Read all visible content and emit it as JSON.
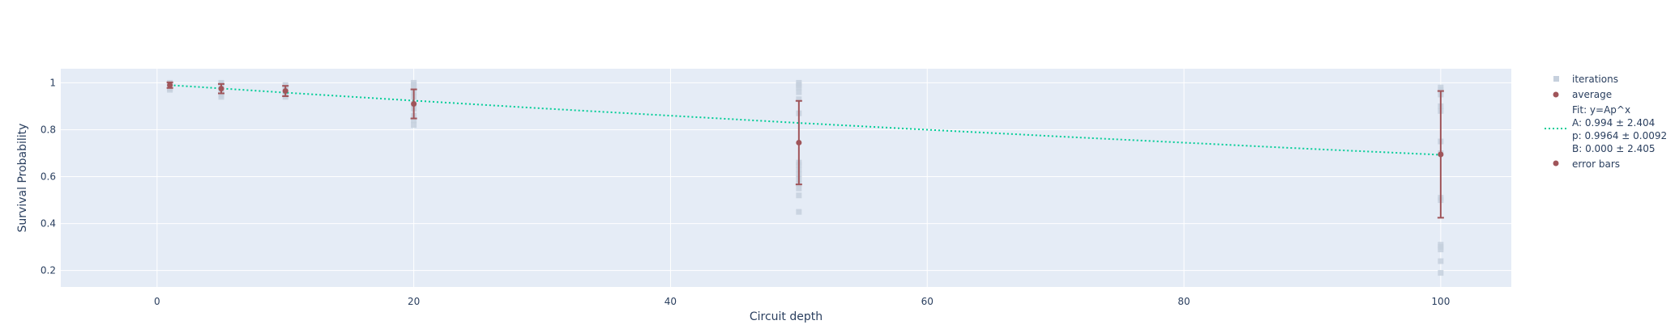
{
  "chart_data": {
    "type": "scatter",
    "xlabel": "Circuit depth",
    "ylabel": "Survival Probability",
    "xlim": [
      -7.5,
      105.5
    ],
    "ylim": [
      0.13,
      1.06
    ],
    "x_ticks": [
      0,
      20,
      40,
      60,
      80,
      100
    ],
    "y_ticks": [
      0.2,
      0.4,
      0.6,
      0.8,
      1
    ],
    "x_tick_labels": [
      "0",
      "20",
      "40",
      "60",
      "80",
      "100"
    ],
    "y_tick_labels": [
      "0.2",
      "0.4",
      "0.6",
      "0.8",
      "1"
    ],
    "grid": true,
    "legend_position": "right",
    "colors": {
      "plot_bg": "#e5ecf6",
      "grid": "#ffffff",
      "iterations": "#c6d0dd",
      "average": "#a0555a",
      "fit": "#00cc96",
      "text": "#2a3f5f"
    },
    "series": [
      {
        "name": "iterations",
        "mode": "markers",
        "marker": "square",
        "points": [
          [
            1,
            1.0
          ],
          [
            1,
            0.99
          ],
          [
            1,
            0.985
          ],
          [
            1,
            0.98
          ],
          [
            1,
            0.975
          ],
          [
            1,
            0.97
          ],
          [
            5,
            1.0
          ],
          [
            5,
            0.99
          ],
          [
            5,
            0.98
          ],
          [
            5,
            0.97
          ],
          [
            5,
            0.96
          ],
          [
            5,
            0.95
          ],
          [
            5,
            0.94
          ],
          [
            10,
            0.99
          ],
          [
            10,
            0.98
          ],
          [
            10,
            0.97
          ],
          [
            10,
            0.96
          ],
          [
            10,
            0.95
          ],
          [
            10,
            0.94
          ],
          [
            20,
            1.0
          ],
          [
            20,
            0.99
          ],
          [
            20,
            0.98
          ],
          [
            20,
            0.96
          ],
          [
            20,
            0.94
          ],
          [
            20,
            0.91
          ],
          [
            20,
            0.89
          ],
          [
            20,
            0.86
          ],
          [
            20,
            0.84
          ],
          [
            20,
            0.82
          ],
          [
            50,
            1.0
          ],
          [
            50,
            0.99
          ],
          [
            50,
            0.98
          ],
          [
            50,
            0.96
          ],
          [
            50,
            0.93
          ],
          [
            50,
            0.87
          ],
          [
            50,
            0.66
          ],
          [
            50,
            0.65
          ],
          [
            50,
            0.63
          ],
          [
            50,
            0.61
          ],
          [
            50,
            0.59
          ],
          [
            50,
            0.57
          ],
          [
            50,
            0.55
          ],
          [
            50,
            0.52
          ],
          [
            50,
            0.45
          ],
          [
            100,
            0.98
          ],
          [
            100,
            0.97
          ],
          [
            100,
            0.95
          ],
          [
            100,
            0.9
          ],
          [
            100,
            0.88
          ],
          [
            100,
            0.75
          ],
          [
            100,
            0.7
          ],
          [
            100,
            0.51
          ],
          [
            100,
            0.5
          ],
          [
            100,
            0.31
          ],
          [
            100,
            0.3
          ],
          [
            100,
            0.29
          ],
          [
            100,
            0.24
          ],
          [
            100,
            0.19
          ]
        ]
      },
      {
        "name": "average",
        "mode": "markers",
        "marker": "circle",
        "x": [
          1,
          5,
          10,
          20,
          50,
          100
        ],
        "y": [
          0.99,
          0.975,
          0.965,
          0.91,
          0.745,
          0.695
        ]
      },
      {
        "name": "Fit: y=Ap^x",
        "mode": "lines",
        "dash": "dot",
        "params": [
          "A: 0.994 ± 2.404",
          "p: 0.9964 ± 0.0092",
          "B: 0.000 ± 2.405"
        ],
        "x": [
          1,
          5,
          10,
          20,
          30,
          40,
          50,
          60,
          70,
          80,
          90,
          100
        ],
        "y": [
          0.99,
          0.976,
          0.958,
          0.924,
          0.891,
          0.86,
          0.829,
          0.8,
          0.772,
          0.745,
          0.718,
          0.693
        ]
      },
      {
        "name": "error bars",
        "mode": "error_bars",
        "x": [
          1,
          5,
          10,
          20,
          50,
          100
        ],
        "y": [
          0.99,
          0.975,
          0.965,
          0.91,
          0.745,
          0.695
        ],
        "error": [
          0.012,
          0.02,
          0.022,
          0.062,
          0.178,
          0.27
        ]
      }
    ]
  }
}
